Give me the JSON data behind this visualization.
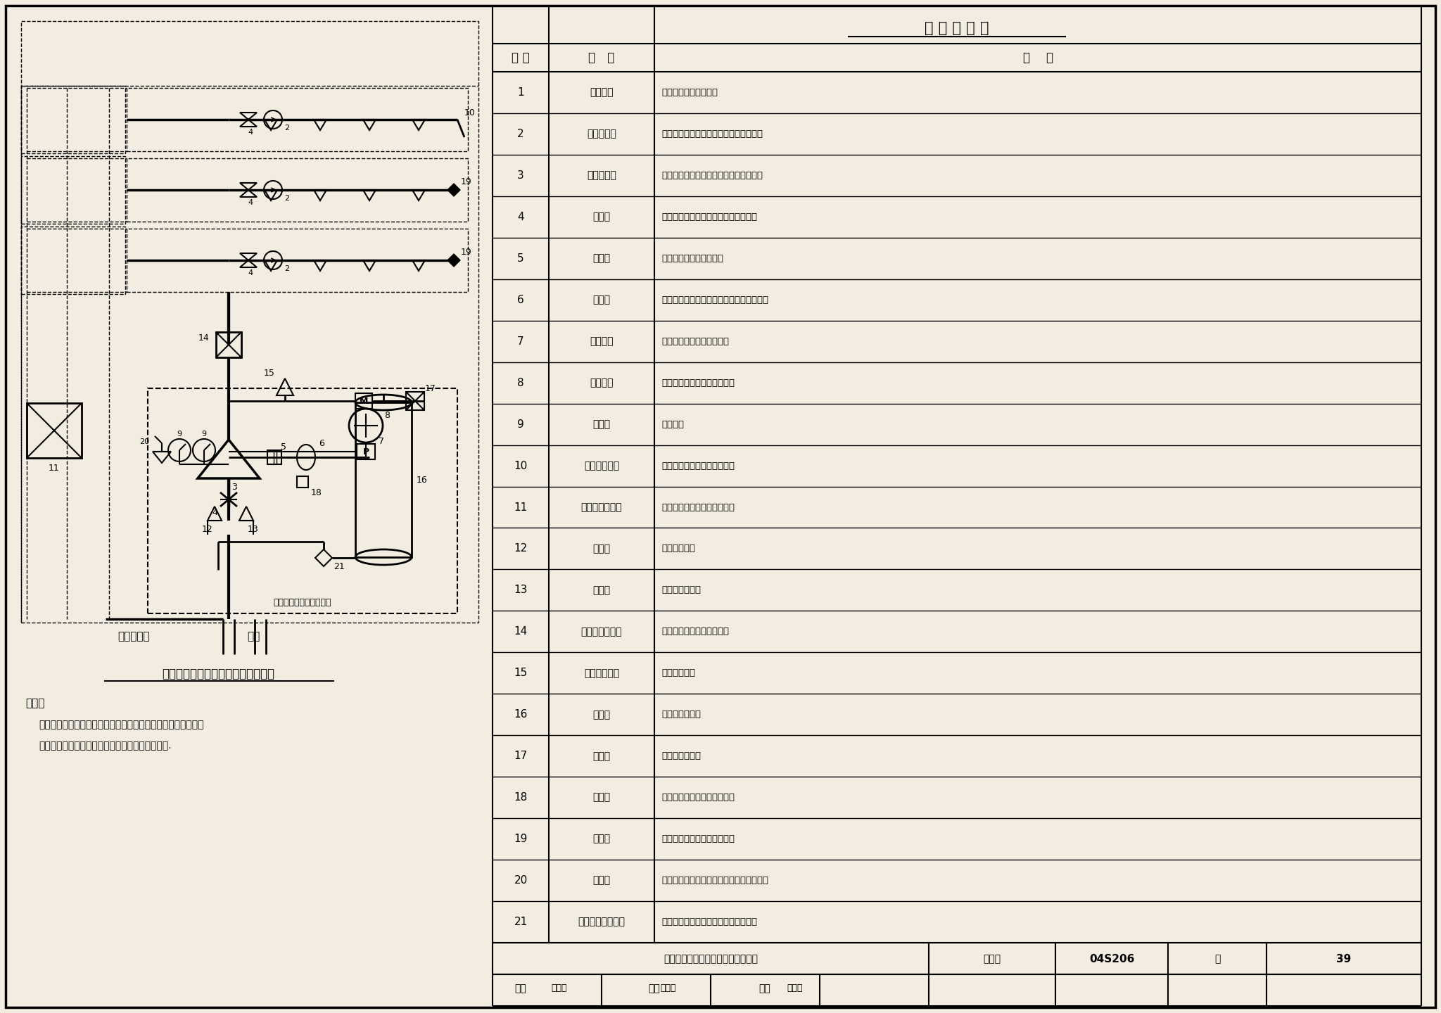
{
  "bg_color": "#f2ede0",
  "table_title": "主 要 部 件 表",
  "table_headers": [
    "编 号",
    "名   称",
    "用    途"
  ],
  "table_data": [
    [
      "1",
      "闭式喷头",
      "火灾发生时，出水灭火"
    ],
    [
      "2",
      "水流指示器",
      "水流动作时，输出电信号，指示火灾区域"
    ],
    [
      "3",
      "湿式报警阀",
      "系统控制阀，开启时可输出报警水流信号"
    ],
    [
      "4",
      "信号阀",
      "供水控制阀，阀门关闭时有电信号输出"
    ],
    [
      "5",
      "过滤器",
      "过滤水中的杂质防止堵塞"
    ],
    [
      "6",
      "延迟器",
      "延迟信号输出，克服水压变化引起的误报警"
    ],
    [
      "7",
      "压力开关",
      "报警阀开启时，发出电信号"
    ],
    [
      "8",
      "水力警铃",
      "报警阀开启时，发出音响信号"
    ],
    [
      "9",
      "压力表",
      "显示水压"
    ],
    [
      "10",
      "末端试水装置",
      "试验末端水压及系统联动功能"
    ],
    [
      "11",
      "火灾报警控制器",
      "接收报警信号并发出控制指令"
    ],
    [
      "12",
      "泄水阀",
      "系统检修排水"
    ],
    [
      "13",
      "试验阀",
      "试验报警阀功能"
    ],
    [
      "14",
      "泡沫比例混合器",
      "按比例混合水与浓缩泡沫液"
    ],
    [
      "15",
      "泡沫液控制阀",
      "控制泡沫供给"
    ],
    [
      "16",
      "泡沫罐",
      "储存浓缩泡沫液"
    ],
    [
      "17",
      "电磁阀",
      "控制泡沫液供给"
    ],
    [
      "18",
      "节流器",
      "节流排水，与延迟器共同工作"
    ],
    [
      "19",
      "试水阀",
      "分区放水及试验系统联动功能"
    ],
    [
      "20",
      "止回阀",
      "单向补水，防止压力变化引起报警阀误动作"
    ],
    [
      "21",
      "泡沫罐供水信号阀",
      "控制泡沫罐供水，关闭时有电信号输出"
    ]
  ],
  "diagram_title": "自动喷水湿式－泡沫联用系统示意图",
  "note_title": "说明：",
  "note_line1": "本图为自动喷水湿式－泡沫联用系统的标准配置，各厂家的产品",
  "note_line2": "可能与此有所不同，但应满足系统的基本功能要求.",
  "footer_diagram_title": "自动喷水湿式－泡沫联用系统示意图",
  "footer_atlas_label": "图集号",
  "footer_atlas_value": "04S206",
  "footer_page_label": "页",
  "footer_page_value": "39",
  "footer_review_label": "审核",
  "footer_check_label": "校对",
  "footer_design_label": "设计",
  "inner_box_note": "注：框内为湿式报警阀组",
  "supply_text": "接消防供水",
  "drain_text": "排水"
}
